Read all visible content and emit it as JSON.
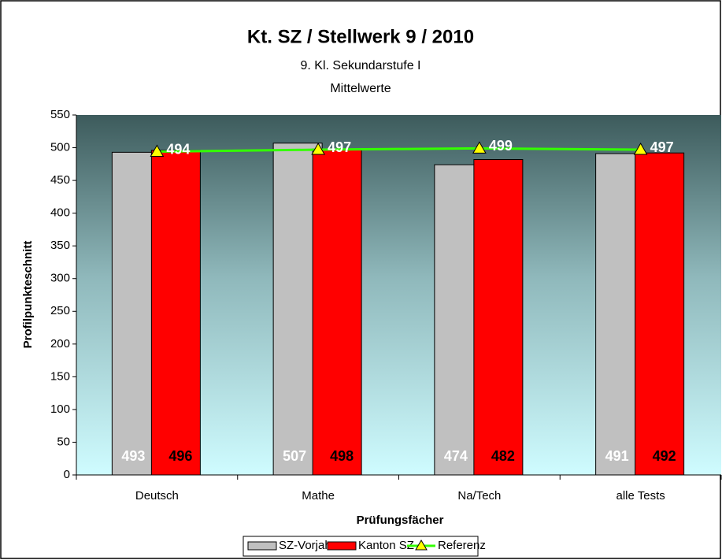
{
  "chart_data": {
    "type": "bar",
    "title": "Kt. SZ / Stellwerk 9 / 2010",
    "subtitle": [
      "9. Kl. Sekundarstufe I",
      "Mittelwerte"
    ],
    "x_label": "Prüfungsfächer",
    "y_label": "Profilpunkteschnitt",
    "categories": [
      "Deutsch",
      "Mathe",
      "Na/Tech",
      "alle Tests"
    ],
    "series": [
      {
        "name": "SZ-Vorjahr",
        "color": "#c0c0c0",
        "type": "bar",
        "label_color": "#ffffff",
        "values": [
          493,
          507,
          474,
          491
        ]
      },
      {
        "name": "Kanton SZ",
        "color": "#ff0000",
        "type": "bar",
        "label_color": "#000000",
        "values": [
          496,
          498,
          482,
          492
        ]
      },
      {
        "name": "Referenz",
        "color": "#33ff00",
        "type": "line",
        "marker_color": "#ffff00",
        "label_color": "#ffffff",
        "values": [
          494,
          497,
          499,
          497
        ]
      }
    ],
    "ylim": [
      0,
      550
    ],
    "yticks": [
      0,
      50,
      100,
      150,
      200,
      250,
      300,
      350,
      400,
      450,
      500,
      550
    ],
    "legend": "bottom"
  }
}
